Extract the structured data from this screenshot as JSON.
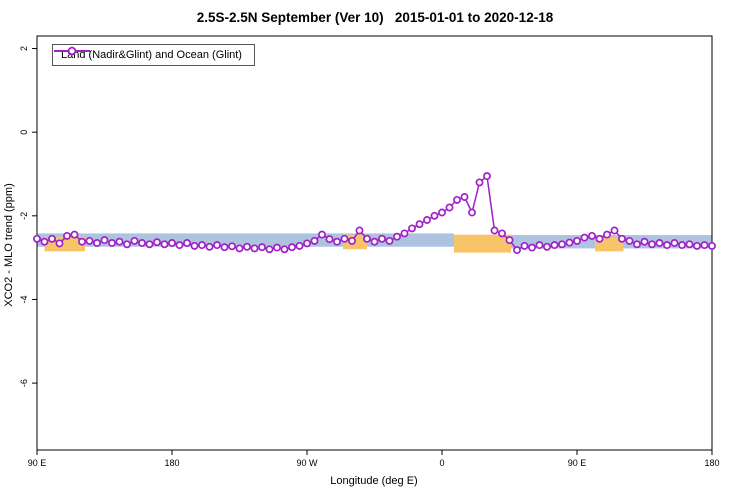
{
  "title": "2.5S-2.5N September (Ver 10)   2015-01-01 to 2020-12-18",
  "chart_data": {
    "type": "line",
    "title": "2.5S-2.5N September (Ver 10)   2015-01-01 to 2020-12-18",
    "xlabel": "Longitude (deg E)",
    "ylabel": "XCO2 - MLO trend (ppm)",
    "xlim": [
      90,
      540
    ],
    "ylim": [
      -7.6,
      2.3
    ],
    "grid": false,
    "legend_position": "top-left",
    "legend": {
      "label": "Land (Nadir&Glint) and Ocean (Glint)"
    },
    "x_ticks": [
      {
        "v": 90,
        "label": "90 E"
      },
      {
        "v": 180,
        "label": "180"
      },
      {
        "v": 270,
        "label": "90 W"
      },
      {
        "v": 360,
        "label": "0"
      },
      {
        "v": 450,
        "label": "90 E"
      },
      {
        "v": 540,
        "label": "180"
      }
    ],
    "y_ticks": [
      {
        "v": 2,
        "label": "2"
      },
      {
        "v": 0,
        "label": "0"
      },
      {
        "v": -2,
        "label": "-2"
      },
      {
        "v": -4,
        "label": "-4"
      },
      {
        "v": -6,
        "label": "-6"
      }
    ],
    "colors": {
      "line": "#a020c8",
      "marker_fill": "#ffffff",
      "band_blue": "#aec3e0",
      "band_orange": "#f8c468"
    },
    "bands": [
      {
        "x1": 90,
        "x2": 368,
        "top": -2.42,
        "bottom": -2.74,
        "color": "band_blue"
      },
      {
        "x1": 406,
        "x2": 540,
        "top": -2.46,
        "bottom": -2.78,
        "color": "band_blue"
      },
      {
        "x1": 95,
        "x2": 122,
        "top": -2.5,
        "bottom": -2.85,
        "color": "band_orange"
      },
      {
        "x1": 294,
        "x2": 310,
        "top": -2.45,
        "bottom": -2.8,
        "color": "band_orange"
      },
      {
        "x1": 368,
        "x2": 406,
        "top": -2.45,
        "bottom": -2.88,
        "color": "band_orange"
      },
      {
        "x1": 462,
        "x2": 481,
        "top": -2.5,
        "bottom": -2.85,
        "color": "band_orange"
      }
    ],
    "series": [
      {
        "name": "Land (Nadir&Glint) and Ocean (Glint)",
        "marker": "open-circle",
        "x": [
          90,
          95,
          100,
          105,
          110,
          115,
          120,
          125,
          130,
          135,
          140,
          145,
          150,
          155,
          160,
          165,
          170,
          175,
          180,
          185,
          190,
          195,
          200,
          205,
          210,
          215,
          220,
          225,
          230,
          235,
          240,
          245,
          250,
          255,
          260,
          265,
          270,
          275,
          280,
          285,
          290,
          295,
          300,
          305,
          310,
          315,
          320,
          325,
          330,
          335,
          340,
          345,
          350,
          355,
          360,
          365,
          370,
          375,
          380,
          385,
          390,
          395,
          400,
          405,
          410,
          415,
          420,
          425,
          430,
          435,
          440,
          445,
          450,
          455,
          460,
          465,
          470,
          475,
          480,
          485,
          490,
          495,
          500,
          505,
          510,
          515,
          520,
          525,
          530,
          535,
          540
        ],
        "y": [
          -2.55,
          -2.62,
          -2.55,
          -2.66,
          -2.48,
          -2.45,
          -2.62,
          -2.6,
          -2.65,
          -2.58,
          -2.65,
          -2.62,
          -2.68,
          -2.6,
          -2.65,
          -2.68,
          -2.63,
          -2.68,
          -2.65,
          -2.7,
          -2.65,
          -2.72,
          -2.7,
          -2.74,
          -2.7,
          -2.75,
          -2.73,
          -2.78,
          -2.74,
          -2.78,
          -2.75,
          -2.8,
          -2.76,
          -2.8,
          -2.75,
          -2.72,
          -2.66,
          -2.6,
          -2.45,
          -2.56,
          -2.62,
          -2.55,
          -2.6,
          -2.35,
          -2.55,
          -2.62,
          -2.55,
          -2.6,
          -2.5,
          -2.42,
          -2.3,
          -2.2,
          -2.1,
          -2.0,
          -1.92,
          -1.8,
          -1.62,
          -1.55,
          -1.92,
          -1.2,
          -1.05,
          -2.35,
          -2.42,
          -2.58,
          -2.82,
          -2.72,
          -2.76,
          -2.7,
          -2.74,
          -2.7,
          -2.68,
          -2.64,
          -2.6,
          -2.52,
          -2.48,
          -2.55,
          -2.45,
          -2.35,
          -2.55,
          -2.6,
          -2.68,
          -2.62,
          -2.68,
          -2.65,
          -2.7,
          -2.65,
          -2.7,
          -2.68,
          -2.72,
          -2.7,
          -2.72
        ]
      }
    ]
  }
}
